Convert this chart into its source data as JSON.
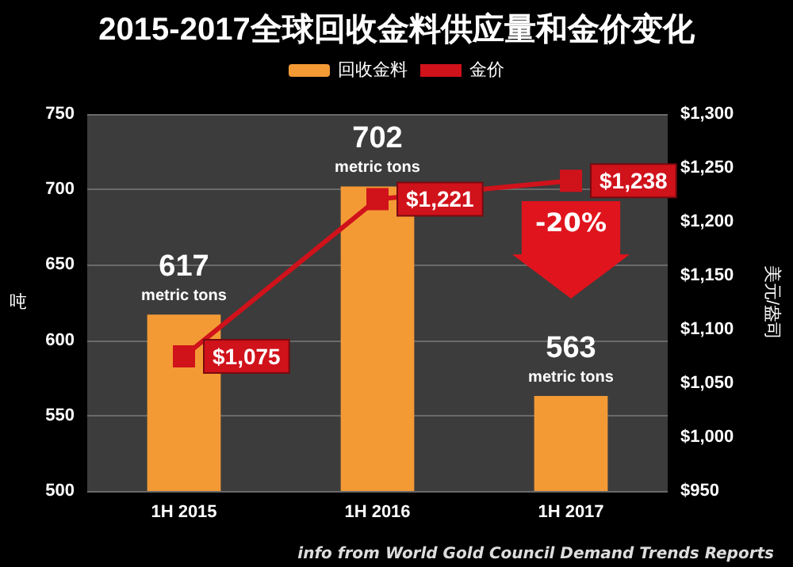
{
  "chart_data": {
    "type": "bar",
    "title": "2015-2017全球回收金料供应量和金价变化",
    "categories": [
      "1H 2015",
      "1H 2016",
      "1H 2017"
    ],
    "series": [
      {
        "name": "回收金料",
        "color": "#f39a35",
        "values": [
          617,
          702,
          563
        ],
        "value_labels": [
          "617\nmetric tons",
          "702\nmetric tons",
          "563\nmetric tons"
        ]
      },
      {
        "name": "金价",
        "type": "line",
        "axis": "y2",
        "color": "#d0121b",
        "values": [
          1075,
          1221,
          1238
        ],
        "value_labels": [
          "$1,075",
          "$1,221",
          "$1,238"
        ],
        "marker": "square"
      }
    ],
    "ylabel": "吨",
    "y2label": "美元/盎司",
    "ylim": [
      500,
      750
    ],
    "yticks": [
      500,
      550,
      600,
      650,
      700,
      750
    ],
    "y2lim": [
      950,
      1300
    ],
    "y2ticks": [
      {
        "value": 950,
        "label": "$950"
      },
      {
        "value": 1000,
        "label": "$1,000"
      },
      {
        "value": 1050,
        "label": "$1,050"
      },
      {
        "value": 1100,
        "label": "$1,100"
      },
      {
        "value": 1150,
        "label": "$1,150"
      },
      {
        "value": 1200,
        "label": "$1,200"
      },
      {
        "value": 1250,
        "label": "$1,250"
      },
      {
        "value": 1300,
        "label": "$1,300"
      }
    ],
    "grid": "y",
    "legend": "top",
    "annotations": [
      "-20%",
      "info from World Gold Council Demand Trends Reports"
    ]
  }
}
